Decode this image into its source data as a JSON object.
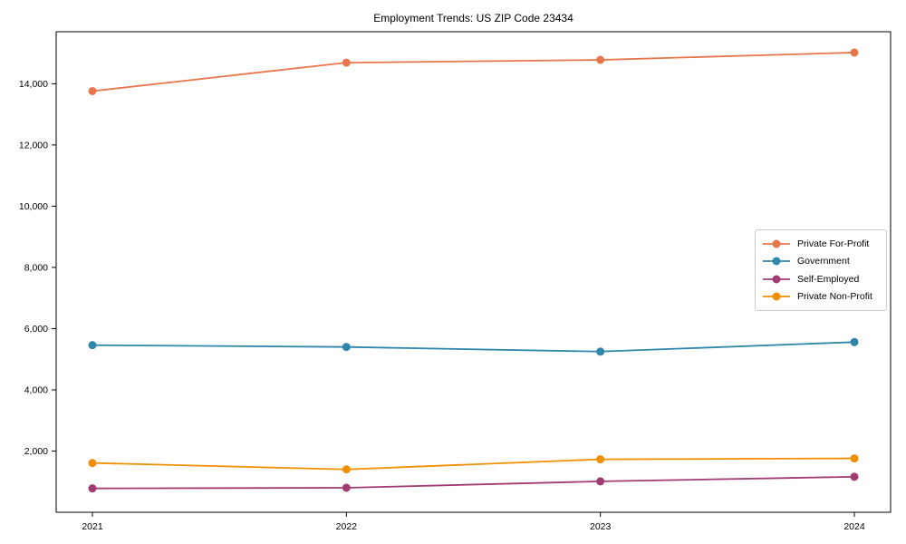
{
  "chart_data": {
    "type": "line",
    "title": "Employment Trends: US ZIP Code 23434",
    "x": [
      "2021",
      "2022",
      "2023",
      "2024"
    ],
    "xlabel": "",
    "ylabel": "",
    "ylim": [
      0,
      15700
    ],
    "y_ticks": [
      2000,
      4000,
      6000,
      8000,
      10000,
      12000,
      14000
    ],
    "y_tick_labels": [
      "2,000",
      "4,000",
      "6,000",
      "8,000",
      "10,000",
      "12,000",
      "14,000"
    ],
    "grid": false,
    "legend_position": "center-right",
    "axis_color": "#000000",
    "legend_border_color": "#cccccc",
    "series": [
      {
        "name": "Private For-Profit",
        "color": "#E8764B",
        "values": [
          13760,
          14690,
          14780,
          15020
        ]
      },
      {
        "name": "Government",
        "color": "#2E86AB",
        "values": [
          5460,
          5400,
          5250,
          5560
        ]
      },
      {
        "name": "Self-Employed",
        "color": "#A23B72",
        "values": [
          780,
          800,
          1010,
          1160
        ]
      },
      {
        "name": "Private Non-Profit",
        "color": "#F18F01",
        "values": [
          1610,
          1400,
          1730,
          1760
        ]
      }
    ]
  }
}
